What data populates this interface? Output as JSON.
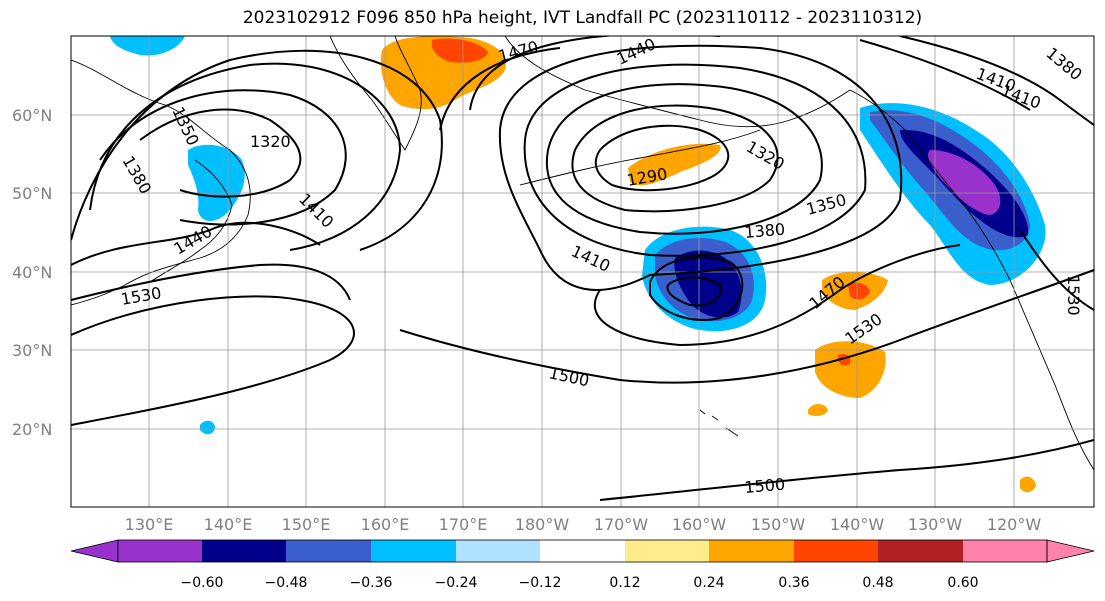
{
  "title": "2023102912 F096 850 hPa height, IVT Landfall PC (2023110112 - 2023110312)",
  "map": {
    "lat_labels": [
      "60°N",
      "50°N",
      "40°N",
      "30°N",
      "20°N"
    ],
    "lon_labels": [
      "130°E",
      "140°E",
      "150°E",
      "160°E",
      "170°E",
      "180°W",
      "170°W",
      "160°W",
      "150°W",
      "140°W",
      "130°W",
      "120°W"
    ],
    "contour_labels": [
      "1470",
      "1440",
      "1410",
      "1380",
      "1350",
      "1320",
      "1290",
      "1350",
      "1380",
      "1410",
      "1470",
      "1530",
      "1500",
      "1500",
      "1530",
      "1530",
      "1440",
      "1410",
      "1320",
      "1380",
      "1410"
    ]
  },
  "colorbar": {
    "tick_labels": [
      "−0.60",
      "−0.48",
      "−0.36",
      "−0.24",
      "−0.12",
      "0.12",
      "0.24",
      "0.36",
      "0.48",
      "0.60"
    ],
    "colors": [
      "#9932CC",
      "#00008B",
      "#3A5FCD",
      "#00BFFF",
      "#B0E2FF",
      "#FFFFFF",
      "#FFEC8B",
      "#FFA500",
      "#FF4500",
      "#B22222",
      "#FF82AB"
    ]
  }
}
